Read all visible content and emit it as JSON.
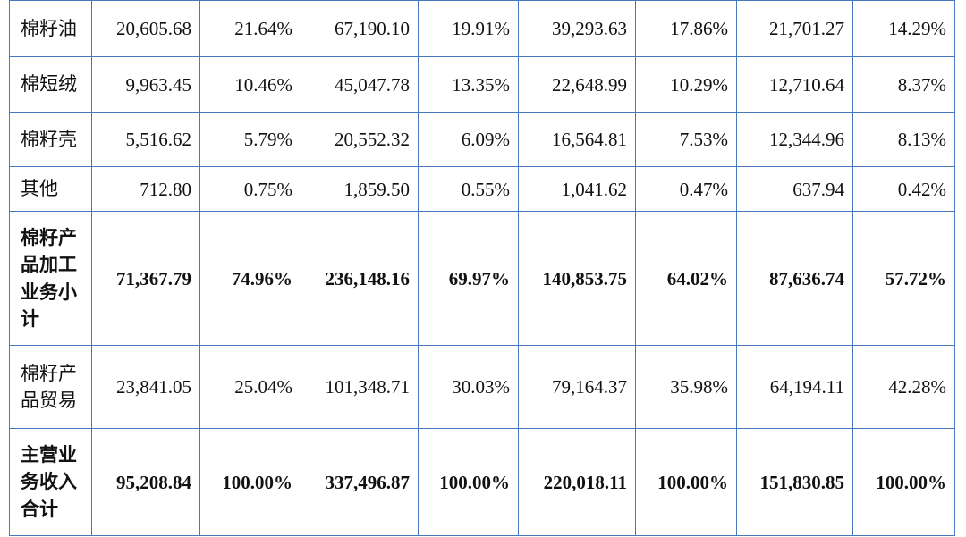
{
  "table": {
    "rows": [
      {
        "label": "棉籽油",
        "bold": false,
        "values": [
          "20,605.68",
          "21.64%",
          "67,190.10",
          "19.91%",
          "39,293.63",
          "17.86%",
          "21,701.27",
          "14.29%"
        ]
      },
      {
        "label": "棉短绒",
        "bold": false,
        "values": [
          "9,963.45",
          "10.46%",
          "45,047.78",
          "13.35%",
          "22,648.99",
          "10.29%",
          "12,710.64",
          "8.37%"
        ]
      },
      {
        "label": "棉籽壳",
        "bold": false,
        "values": [
          "5,516.62",
          "5.79%",
          "20,552.32",
          "6.09%",
          "16,564.81",
          "7.53%",
          "12,344.96",
          "8.13%"
        ]
      },
      {
        "label": "其他",
        "bold": false,
        "values": [
          "712.80",
          "0.75%",
          "1,859.50",
          "0.55%",
          "1,041.62",
          "0.47%",
          "637.94",
          "0.42%"
        ]
      },
      {
        "label": "棉籽产品加工业务小计",
        "bold": true,
        "values": [
          "71,367.79",
          "74.96%",
          "236,148.16",
          "69.97%",
          "140,853.75",
          "64.02%",
          "87,636.74",
          "57.72%"
        ]
      },
      {
        "label": "棉籽产品贸易",
        "bold": false,
        "values": [
          "23,841.05",
          "25.04%",
          "101,348.71",
          "30.03%",
          "79,164.37",
          "35.98%",
          "64,194.11",
          "42.28%"
        ]
      },
      {
        "label": "主营业务收入合计",
        "bold": true,
        "values": [
          "95,208.84",
          "100.00%",
          "337,496.87",
          "100.00%",
          "220,018.11",
          "100.00%",
          "151,830.85",
          "100.00%"
        ]
      }
    ]
  }
}
